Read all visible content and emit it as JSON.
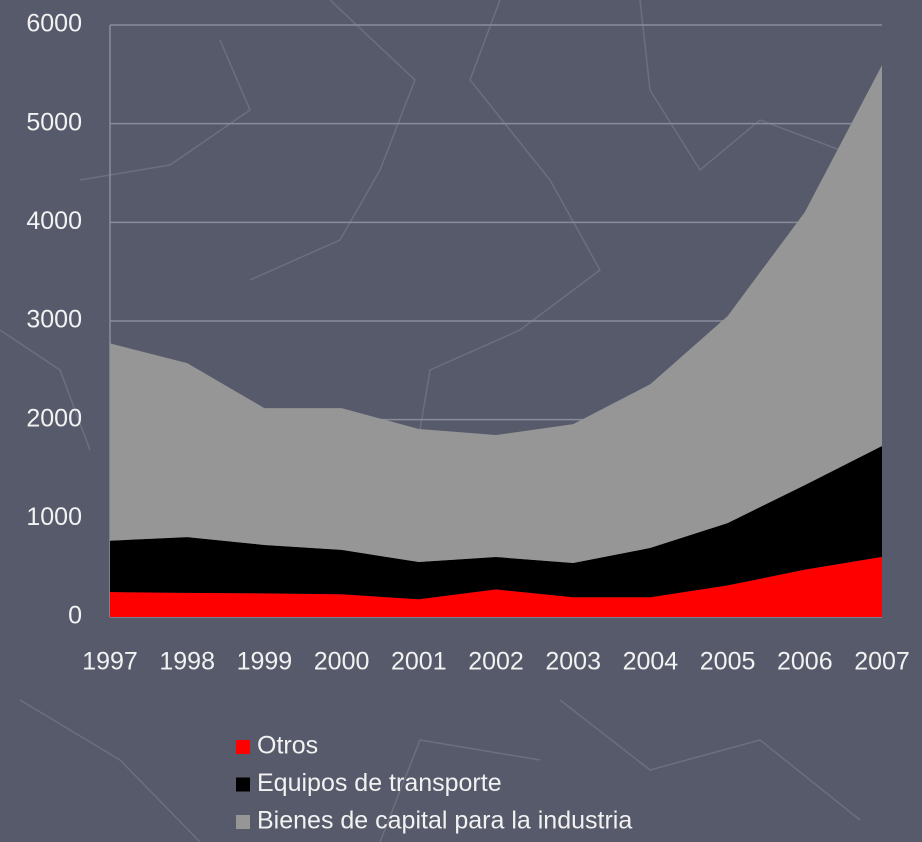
{
  "chart_data": {
    "type": "stacked_area",
    "categories": [
      "1997",
      "1998",
      "1999",
      "2000",
      "2001",
      "2002",
      "2003",
      "2004",
      "2005",
      "2006",
      "2007"
    ],
    "series": [
      {
        "name": "Otros",
        "color": "#ff0000",
        "values": [
          253,
          245,
          240,
          230,
          180,
          280,
          200,
          200,
          320,
          480,
          610
        ]
      },
      {
        "name": "Equipos de transporte",
        "color": "#000000",
        "values": [
          520,
          565,
          490,
          450,
          377,
          328,
          347,
          500,
          632,
          857,
          1123
        ]
      },
      {
        "name": "Bienes de capital para la industria",
        "color": "#969696",
        "values": [
          2000,
          1763,
          1387,
          1437,
          1348,
          1236,
          1408,
          1660,
          2098,
          2766,
          3860
        ]
      }
    ],
    "ylim": [
      0,
      6000
    ],
    "yticks": [
      0,
      1000,
      2000,
      3000,
      4000,
      5000,
      6000
    ],
    "grid": true
  }
}
